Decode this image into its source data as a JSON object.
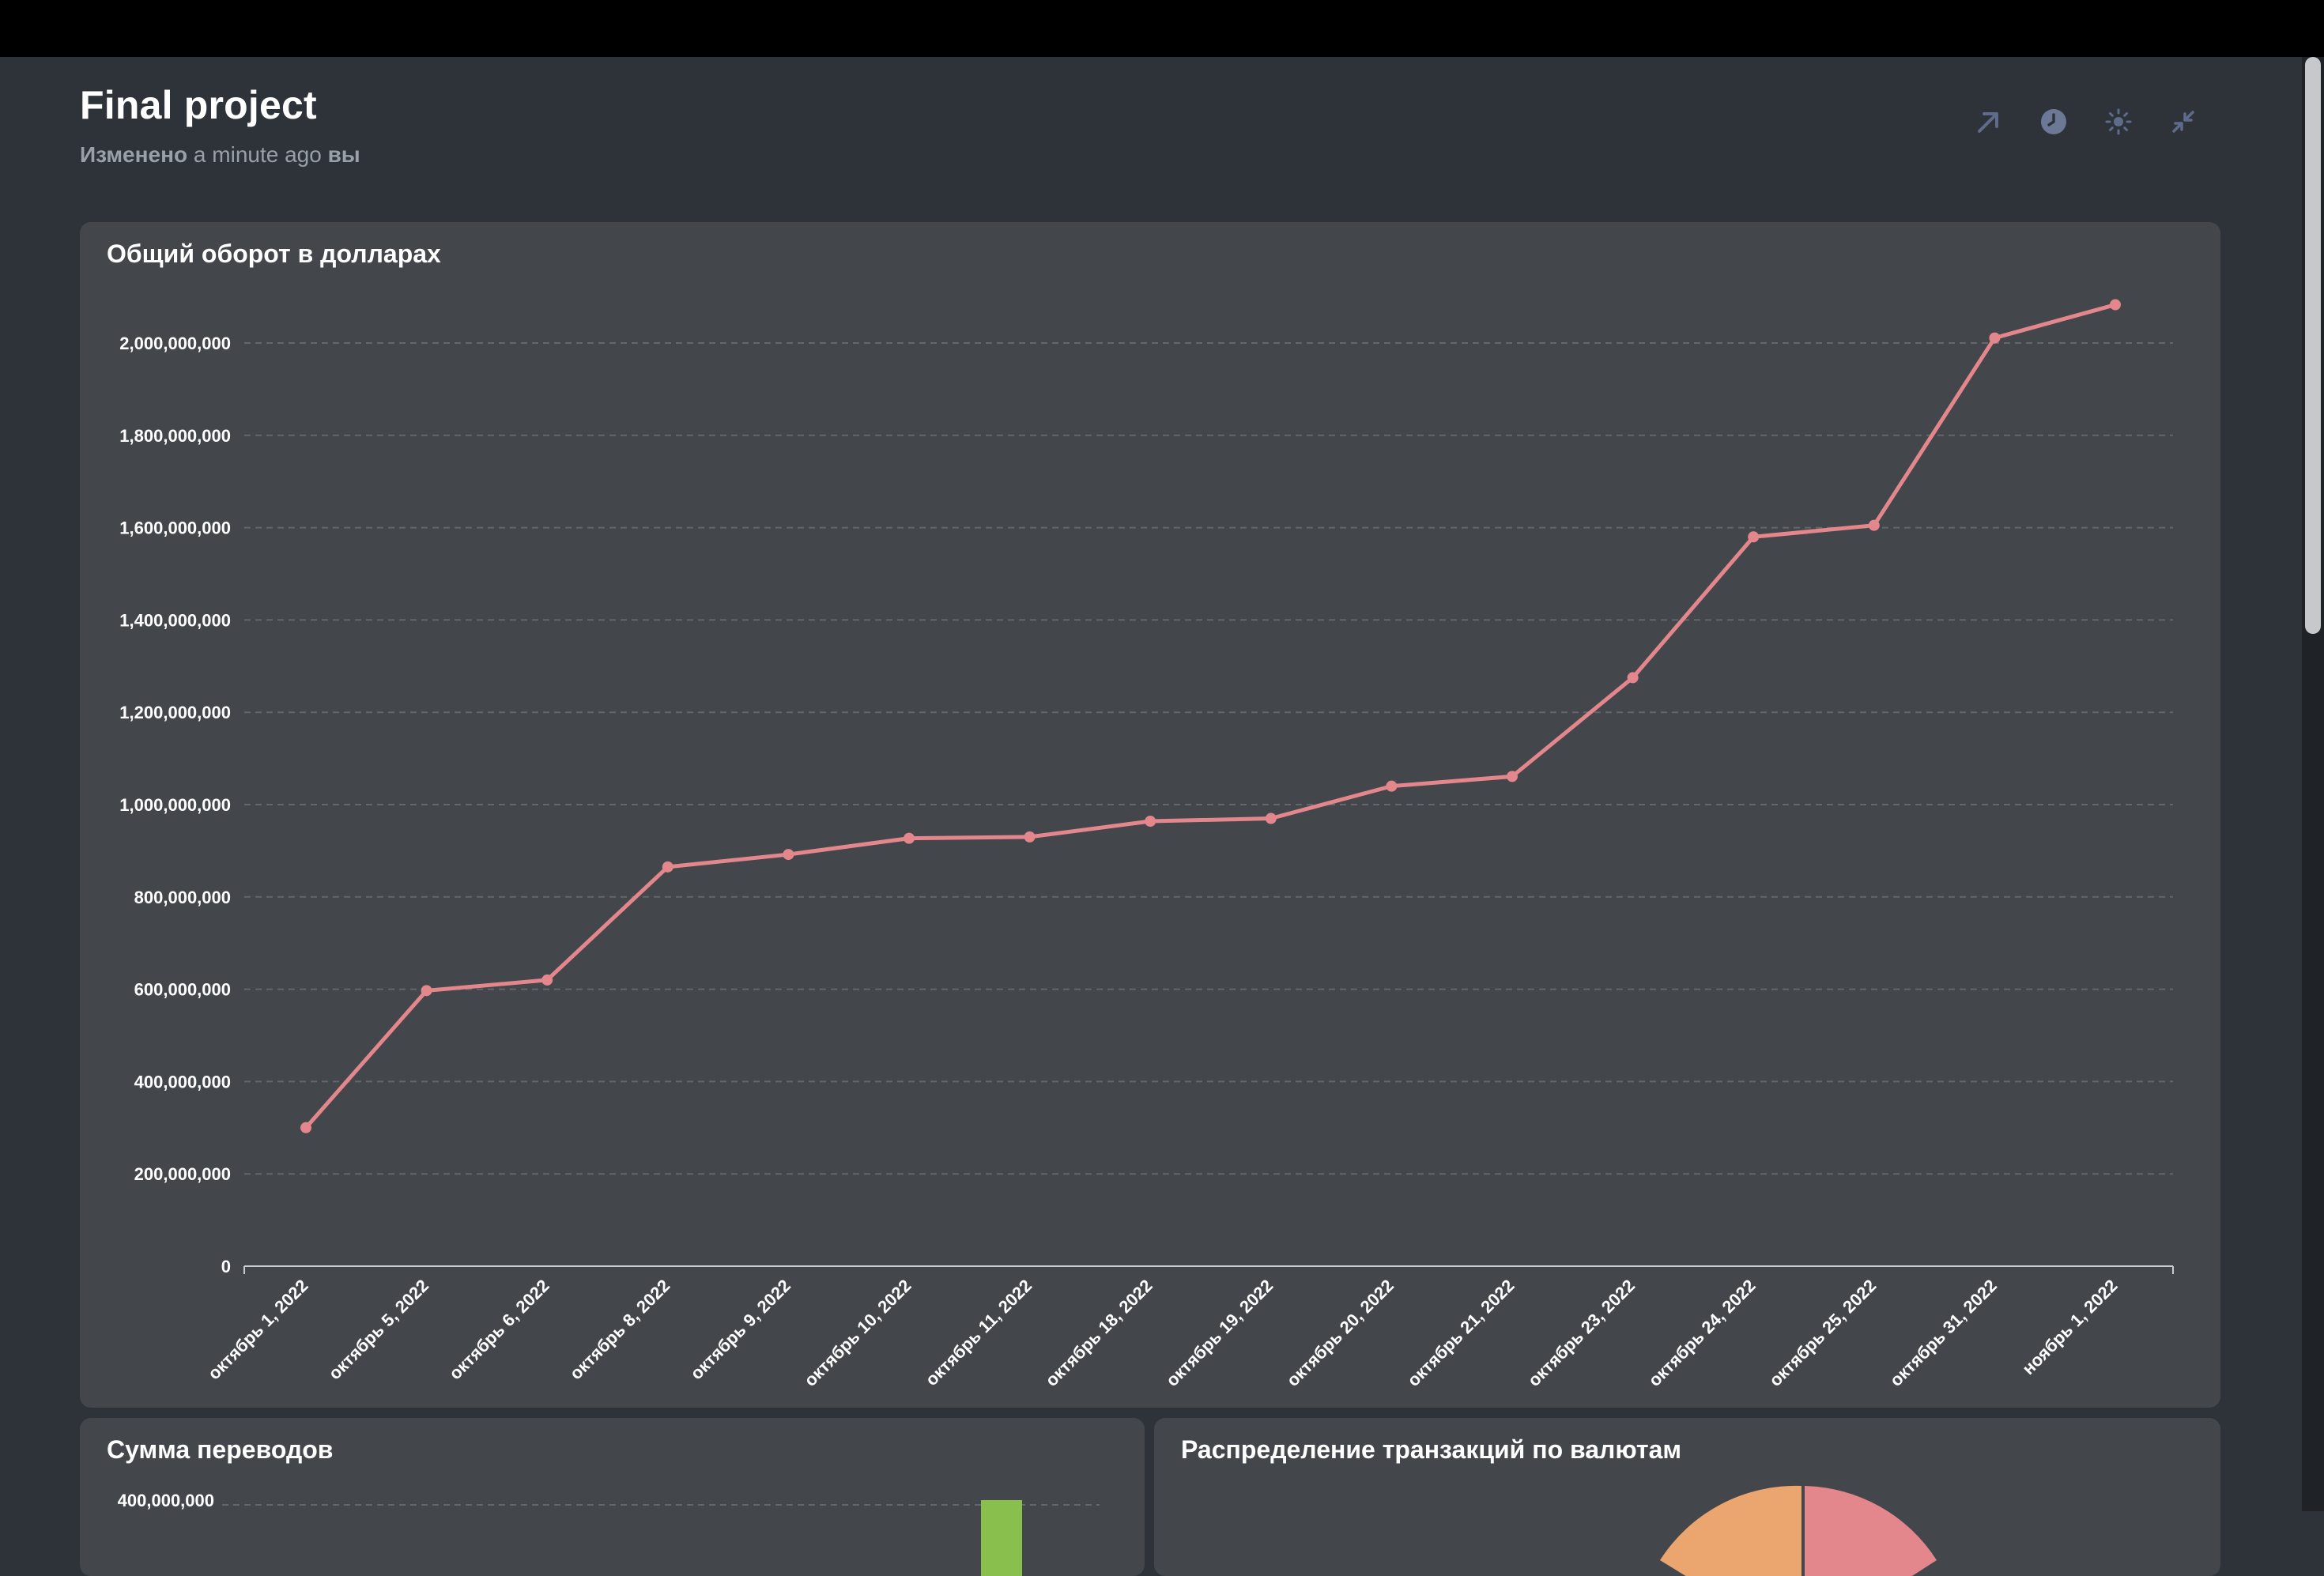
{
  "header": {
    "title": "Final project",
    "subtitle_prefix": "Изменено",
    "subtitle_time": "a minute ago",
    "subtitle_suffix": "вы"
  },
  "actions": [
    {
      "name": "share-icon"
    },
    {
      "name": "clock-icon"
    },
    {
      "name": "sun-icon"
    },
    {
      "name": "collapse-icon"
    }
  ],
  "colors": {
    "line": "#e3878c",
    "grid": "#63676c",
    "bar_green": "#88bf4d",
    "pie_orange": "#eba56f",
    "pie_pink": "#e3878c"
  },
  "main_chart": {
    "title": "Общий оборот в долларах"
  },
  "transfers": {
    "title": "Сумма переводов",
    "top_tick": "400,000,000"
  },
  "currency": {
    "title": "Распределение транзакций по валютам"
  },
  "chart_data": [
    {
      "type": "line",
      "title": "Общий оборот в долларах",
      "xlabel": "",
      "ylabel": "",
      "x": [
        "октябрь 1, 2022",
        "октябрь 5, 2022",
        "октябрь 6, 2022",
        "октябрь 8, 2022",
        "октябрь 9, 2022",
        "октябрь 10, 2022",
        "октябрь 11, 2022",
        "октябрь 18, 2022",
        "октябрь 19, 2022",
        "октябрь 20, 2022",
        "октябрь 21, 2022",
        "октябрь 23, 2022",
        "октябрь 24, 2022",
        "октябрь 25, 2022",
        "октябрь 31, 2022",
        "ноябрь 1, 2022"
      ],
      "values": [
        300000000,
        597000000,
        620000000,
        865000000,
        892000000,
        927000000,
        930000000,
        964000000,
        970000000,
        1040000000,
        1061000000,
        1275000000,
        1580000000,
        1605000000,
        2011000000,
        2083000000
      ],
      "ylim": [
        0,
        2000000000
      ],
      "yticks": [
        "0",
        "200,000,000",
        "400,000,000",
        "600,000,000",
        "800,000,000",
        "1,000,000,000",
        "1,200,000,000",
        "1,400,000,000",
        "1,600,000,000",
        "1,800,000,000",
        "2,000,000,000"
      ],
      "grid": true
    }
  ]
}
